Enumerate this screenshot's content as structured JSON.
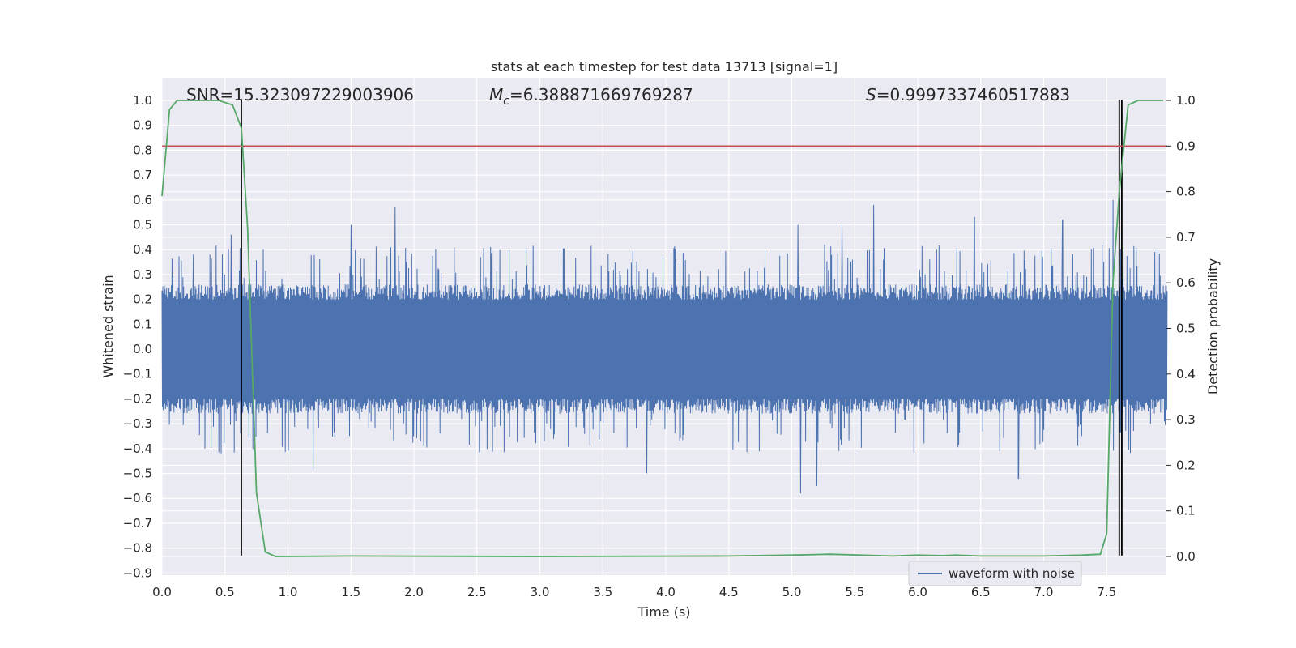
{
  "chart_data": {
    "type": "line",
    "title": "stats at each timestep for test data 13713 [signal=1]",
    "xlabel": "Time (s)",
    "ylabel": "Whitened strain",
    "y2label": "Detection probability",
    "xlim": [
      0.0,
      7.98
    ],
    "ylim": [
      -0.92,
      1.08
    ],
    "y2lim": [
      -0.04,
      1.04
    ],
    "x_ticks": [
      "0.0",
      "0.5",
      "1.0",
      "1.5",
      "2.0",
      "2.5",
      "3.0",
      "3.5",
      "4.0",
      "4.5",
      "5.0",
      "5.5",
      "6.0",
      "6.5",
      "7.0",
      "7.5"
    ],
    "y_ticks": [
      "1.0",
      "0.9",
      "0.8",
      "0.7",
      "0.6",
      "0.5",
      "0.4",
      "0.3",
      "0.2",
      "0.1",
      "0.0",
      "−0.1",
      "−0.2",
      "−0.3",
      "−0.4",
      "−0.5",
      "−0.6",
      "−0.7",
      "−0.8",
      "−0.9"
    ],
    "y2_ticks": [
      "1.0",
      "0.9",
      "0.8",
      "0.7",
      "0.6",
      "0.5",
      "0.4",
      "0.3",
      "0.2",
      "0.1",
      "0.0"
    ],
    "grid": true,
    "legend_position": "lower right",
    "annotations": {
      "snr": "SNR=15.323097229003906",
      "mc_symbol": "M",
      "mc_sub": "c",
      "mc_value": "=6.388871669769287",
      "s_symbol": "S",
      "s_value": "=0.9997337460517883"
    },
    "series": [
      {
        "name": "waveform with noise",
        "kind": "noisy-strain",
        "color": "#4c72b0",
        "core_amplitude": 0.26,
        "peaks": [
          {
            "x": 0.25,
            "y": 0.38
          },
          {
            "x": 0.55,
            "y": 0.46
          },
          {
            "x": 0.63,
            "y": -0.41
          },
          {
            "x": 1.5,
            "y": 0.5
          },
          {
            "x": 1.85,
            "y": 0.57
          },
          {
            "x": 1.2,
            "y": -0.48
          },
          {
            "x": 3.85,
            "y": -0.5
          },
          {
            "x": 5.07,
            "y": -0.58
          },
          {
            "x": 5.2,
            "y": -0.55
          },
          {
            "x": 5.05,
            "y": 0.5
          },
          {
            "x": 5.65,
            "y": 0.58
          },
          {
            "x": 5.4,
            "y": 0.5
          },
          {
            "x": 6.45,
            "y": 0.53
          },
          {
            "x": 7.15,
            "y": 0.52
          },
          {
            "x": 6.8,
            "y": -0.52
          },
          {
            "x": 7.55,
            "y": 0.6
          },
          {
            "x": 7.6,
            "y": 0.66
          },
          {
            "x": 7.62,
            "y": -0.83
          }
        ]
      },
      {
        "name": "detection probability",
        "color": "#55a868",
        "axis": "right",
        "x": [
          0.0,
          0.06,
          0.12,
          0.3,
          0.45,
          0.56,
          0.63,
          0.68,
          0.75,
          0.82,
          0.9,
          1.5,
          3.0,
          4.5,
          5.0,
          5.3,
          5.8,
          6.0,
          6.2,
          6.3,
          6.5,
          7.0,
          7.3,
          7.45,
          7.5,
          7.55,
          7.6,
          7.67,
          7.75,
          7.85,
          7.95
        ],
        "y": [
          0.79,
          0.98,
          1.0,
          1.0,
          1.0,
          0.99,
          0.94,
          0.72,
          0.14,
          0.01,
          0.0,
          0.001,
          0.0,
          0.001,
          0.003,
          0.005,
          0.001,
          0.003,
          0.002,
          0.003,
          0.001,
          0.001,
          0.003,
          0.005,
          0.05,
          0.6,
          0.8,
          0.99,
          1.0,
          1.0,
          1.0
        ]
      },
      {
        "name": "threshold",
        "color": "#c44e52",
        "axis": "right",
        "y": 0.9
      }
    ],
    "markers": [
      {
        "name": "start-marker",
        "x": 0.63,
        "y1": 1.0,
        "y2": -0.83
      },
      {
        "name": "end-marker-a",
        "x": 7.6,
        "y1": 1.0,
        "y2": -0.83
      },
      {
        "name": "end-marker-b",
        "x": 7.62,
        "y1": 1.0,
        "y2": -0.83
      }
    ]
  }
}
